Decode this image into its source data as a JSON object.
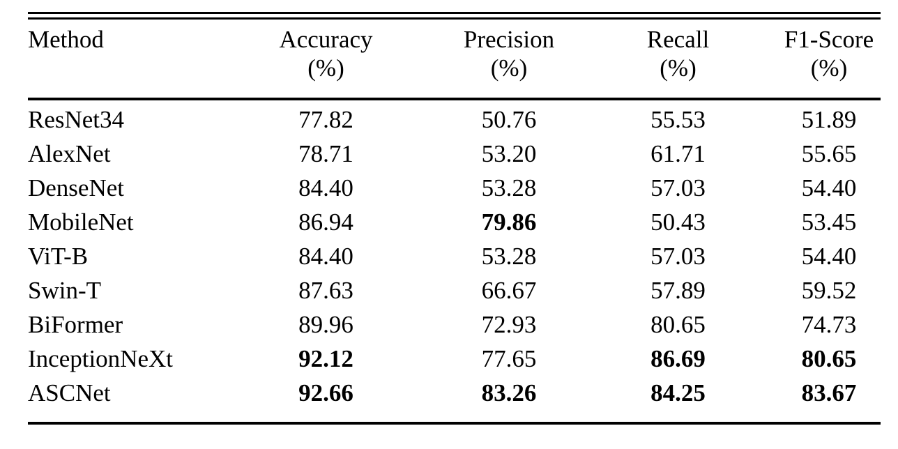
{
  "page": {
    "background_color": "#ffffff",
    "text_color": "#000000"
  },
  "table": {
    "headers": [
      {
        "label": "Method",
        "unit": ""
      },
      {
        "label": "Accuracy",
        "unit": "(%)"
      },
      {
        "label": "Precision",
        "unit": "(%)"
      },
      {
        "label": "Recall",
        "unit": "(%)"
      },
      {
        "label": "F1-Score",
        "unit": "(%)"
      }
    ],
    "rows": [
      {
        "method": "ResNet34",
        "values": [
          "77.82",
          "50.76",
          "55.53",
          "51.89"
        ],
        "bold": [
          false,
          false,
          false,
          false
        ]
      },
      {
        "method": "AlexNet",
        "values": [
          "78.71",
          "53.20",
          "61.71",
          "55.65"
        ],
        "bold": [
          false,
          false,
          false,
          false
        ]
      },
      {
        "method": "DenseNet",
        "values": [
          "84.40",
          "53.28",
          "57.03",
          "54.40"
        ],
        "bold": [
          false,
          false,
          false,
          false
        ]
      },
      {
        "method": "MobileNet",
        "values": [
          "86.94",
          "79.86",
          "50.43",
          "53.45"
        ],
        "bold": [
          false,
          true,
          false,
          false
        ]
      },
      {
        "method": "ViT-B",
        "values": [
          "84.40",
          "53.28",
          "57.03",
          "54.40"
        ],
        "bold": [
          false,
          false,
          false,
          false
        ]
      },
      {
        "method": "Swin-T",
        "values": [
          "87.63",
          "66.67",
          "57.89",
          "59.52"
        ],
        "bold": [
          false,
          false,
          false,
          false
        ]
      },
      {
        "method": "BiFormer",
        "values": [
          "89.96",
          "72.93",
          "80.65",
          "74.73"
        ],
        "bold": [
          false,
          false,
          false,
          false
        ]
      },
      {
        "method": "InceptionNeXt",
        "values": [
          "92.12",
          "77.65",
          "86.69",
          "80.65"
        ],
        "bold": [
          true,
          false,
          true,
          true
        ]
      },
      {
        "method": "ASCNet",
        "values": [
          "92.66",
          "83.26",
          "84.25",
          "83.67"
        ],
        "bold": [
          true,
          true,
          true,
          true
        ]
      }
    ]
  }
}
